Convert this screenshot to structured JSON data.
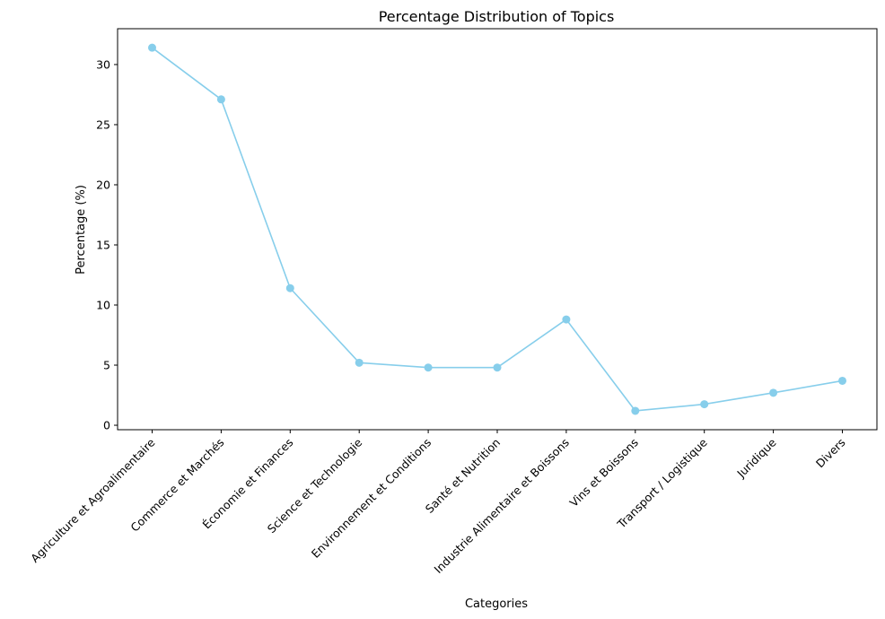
{
  "chart_data": {
    "type": "line",
    "title": "Percentage Distribution of Topics",
    "xlabel": "Categories",
    "ylabel": "Percentage (%)",
    "categories": [
      "Agriculture et Agroalimentaire",
      "Commerce et Marchés",
      "Économie et Finances",
      "Science et Technologie",
      "Environnement et Conditions",
      "Santé et Nutrition",
      "Industrie Alimentaire et Boissons",
      "Vins et Boissons",
      "Transport / Logistique",
      "Juridique",
      "Divers"
    ],
    "series": [
      {
        "values": [
          31.4,
          27.1,
          11.4,
          5.2,
          4.8,
          4.8,
          8.8,
          1.2,
          1.75,
          2.7,
          3.7
        ],
        "color": "#87ceeb",
        "marker": "circle"
      }
    ],
    "yticks": [
      0,
      5,
      10,
      15,
      20,
      25,
      30
    ],
    "ytick_labels": [
      "0",
      "5",
      "10",
      "15",
      "20",
      "25",
      "30"
    ],
    "ylim": [
      -0.37,
      32.98
    ],
    "grid": false,
    "legend": "none"
  }
}
